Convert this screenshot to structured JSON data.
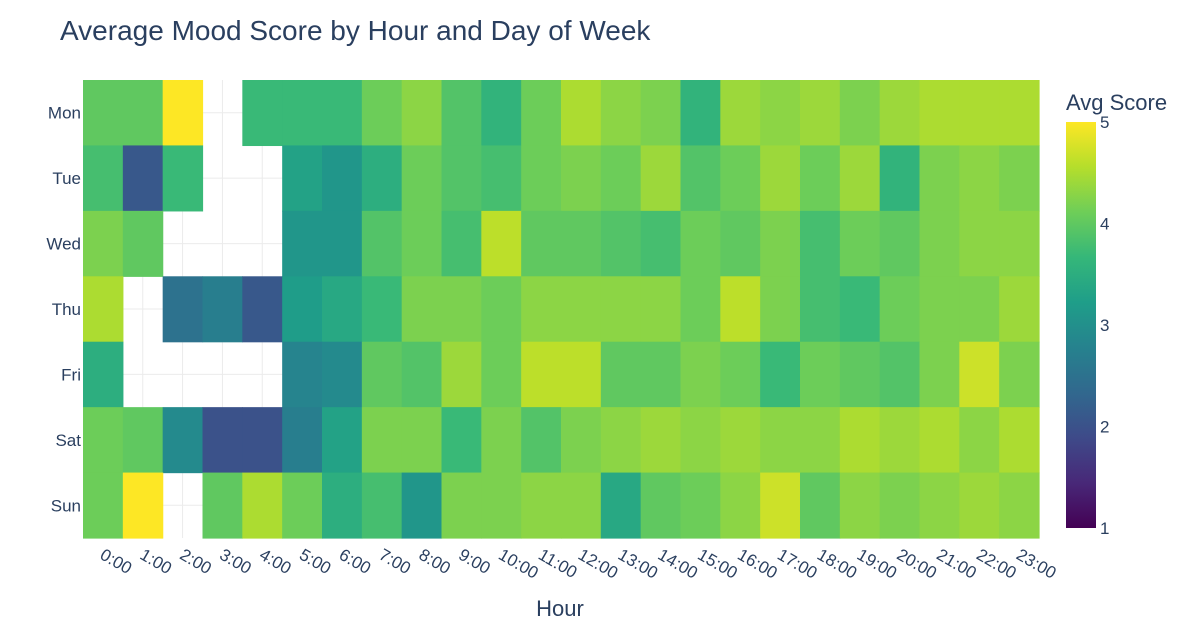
{
  "chart_data": {
    "type": "heatmap",
    "title": "Average Mood Score by Hour and Day of Week",
    "xlabel": "Hour",
    "ylabel": "",
    "x": [
      "0:00",
      "1:00",
      "2:00",
      "3:00",
      "4:00",
      "5:00",
      "6:00",
      "7:00",
      "8:00",
      "9:00",
      "10:00",
      "11:00",
      "12:00",
      "13:00",
      "14:00",
      "15:00",
      "16:00",
      "17:00",
      "18:00",
      "19:00",
      "20:00",
      "21:00",
      "22:00",
      "23:00"
    ],
    "y": [
      "Mon",
      "Tue",
      "Wed",
      "Thu",
      "Fri",
      "Sat",
      "Sun"
    ],
    "z": [
      [
        4.0,
        4.0,
        5.0,
        null,
        3.7,
        3.7,
        3.7,
        4.1,
        4.3,
        3.9,
        3.6,
        4.1,
        4.5,
        4.3,
        4.2,
        3.6,
        4.4,
        4.3,
        4.4,
        4.2,
        4.4,
        4.5,
        4.5,
        4.5
      ],
      [
        3.8,
        2.1,
        3.7,
        null,
        null,
        3.3,
        3.1,
        3.5,
        4.1,
        3.9,
        3.8,
        4.1,
        4.2,
        4.1,
        4.4,
        3.9,
        4.1,
        4.4,
        4.1,
        4.4,
        3.6,
        4.2,
        4.3,
        4.2
      ],
      [
        4.2,
        4.0,
        null,
        null,
        null,
        3.1,
        3.1,
        3.9,
        4.1,
        3.8,
        4.6,
        4.0,
        4.0,
        3.9,
        3.8,
        4.1,
        4.0,
        4.2,
        3.8,
        4.1,
        4.0,
        4.2,
        4.3,
        4.3
      ],
      [
        4.5,
        null,
        2.5,
        2.7,
        2.1,
        3.2,
        3.4,
        3.7,
        4.2,
        4.2,
        4.1,
        4.3,
        4.3,
        4.3,
        4.3,
        4.1,
        4.6,
        4.2,
        3.8,
        3.7,
        4.1,
        4.2,
        4.2,
        4.4
      ],
      [
        3.5,
        null,
        null,
        null,
        null,
        2.8,
        2.9,
        4.0,
        3.9,
        4.4,
        4.1,
        4.6,
        4.6,
        4.0,
        4.0,
        4.2,
        4.1,
        3.7,
        4.1,
        4.0,
        3.9,
        4.2,
        4.7,
        4.2
      ],
      [
        4.1,
        4.0,
        2.9,
        2.0,
        2.0,
        2.7,
        3.3,
        4.2,
        4.2,
        3.7,
        4.2,
        3.9,
        4.2,
        4.3,
        4.4,
        4.3,
        4.4,
        4.3,
        4.3,
        4.5,
        4.4,
        4.5,
        4.3,
        4.5
      ],
      [
        4.1,
        5.0,
        null,
        4.0,
        4.5,
        4.1,
        3.5,
        3.8,
        3.1,
        4.2,
        4.2,
        4.3,
        4.3,
        3.4,
        4.0,
        4.1,
        4.3,
        4.7,
        4.0,
        4.3,
        4.2,
        4.3,
        4.4,
        4.3
      ]
    ],
    "zlim": [
      1,
      5
    ],
    "colorscale": "Viridis",
    "colorbar": {
      "title": "Avg Score",
      "ticks": [
        "1",
        "2",
        "3",
        "4",
        "5"
      ]
    },
    "grid": true
  }
}
